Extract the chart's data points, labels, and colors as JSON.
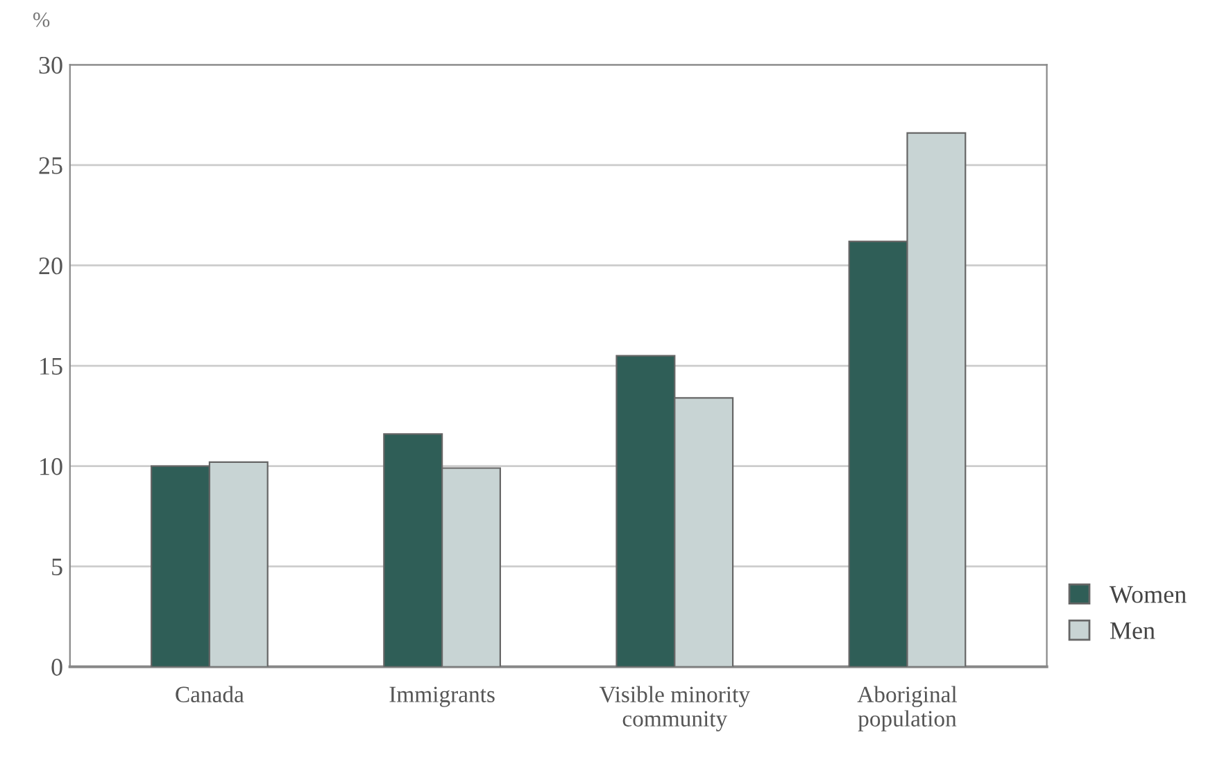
{
  "chart_data": {
    "type": "bar",
    "ylabel": "%",
    "categories": [
      "Canada",
      "Immigrants",
      "Visible minority\ncommunity",
      "Aboriginal\npopulation"
    ],
    "series": [
      {
        "name": "Women",
        "color": "#2f5e57",
        "values": [
          10.0,
          11.6,
          15.5,
          21.2
        ]
      },
      {
        "name": "Men",
        "color": "#c8d4d4",
        "values": [
          10.2,
          9.9,
          13.4,
          26.6
        ]
      }
    ],
    "ylim": [
      0,
      30
    ],
    "yticks": [
      0,
      5,
      10,
      15,
      20,
      25,
      30
    ],
    "grid": "y",
    "legend": "bottom right"
  }
}
